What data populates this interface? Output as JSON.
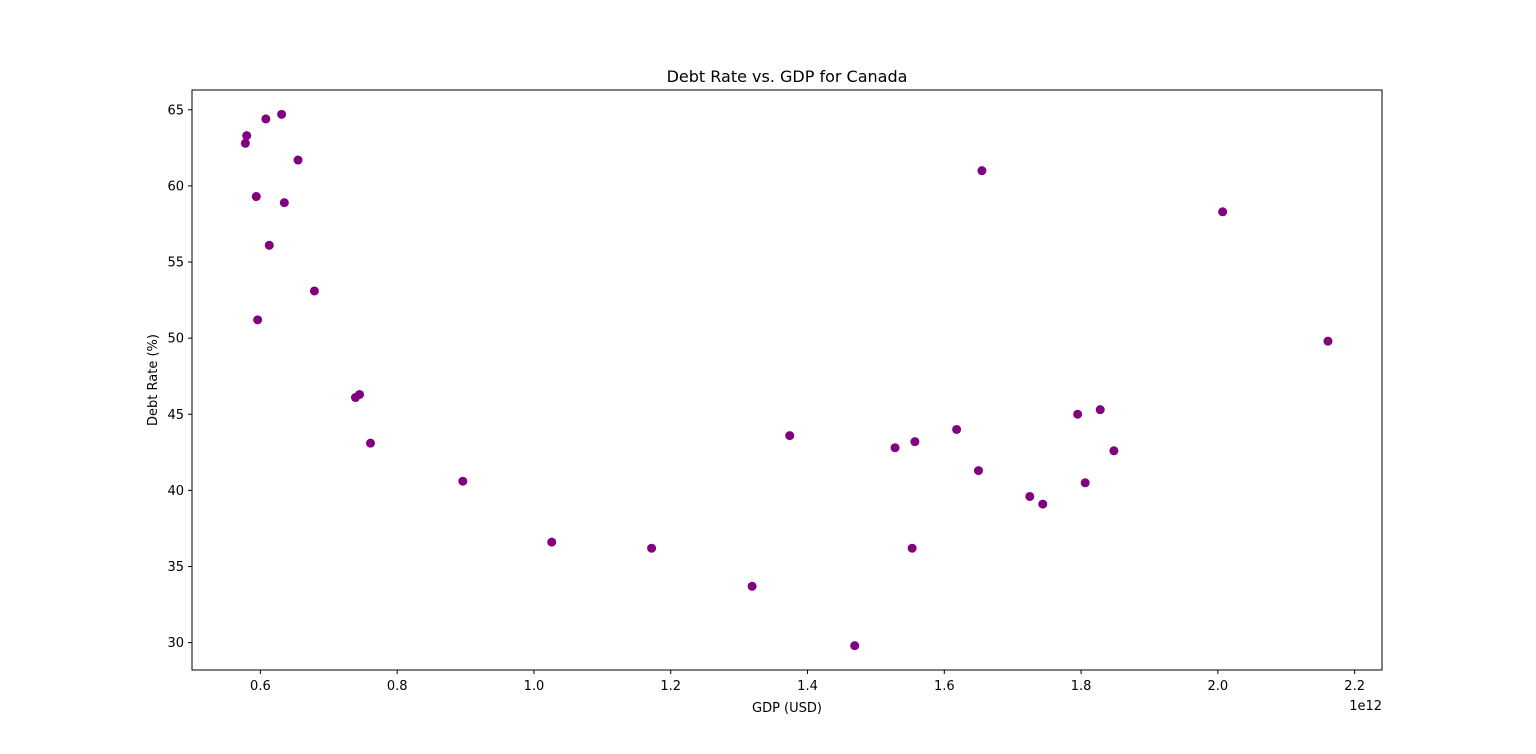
{
  "chart_data": {
    "type": "scatter",
    "title": "Debt Rate vs. GDP for Canada",
    "xlabel": "GDP (USD)",
    "ylabel": "Debt Rate (%)",
    "x_offset_label": "1e12",
    "xlim": [
      0.5,
      2.24
    ],
    "ylim": [
      28.2,
      66.3
    ],
    "x_ticks": [
      0.6,
      0.8,
      1.0,
      1.2,
      1.4,
      1.6,
      1.8,
      2.0,
      2.2
    ],
    "x_tick_labels": [
      "0.6",
      "0.8",
      "1.0",
      "1.2",
      "1.4",
      "1.6",
      "1.8",
      "2.0",
      "2.2"
    ],
    "y_ticks": [
      30,
      35,
      40,
      45,
      50,
      55,
      60,
      65
    ],
    "y_tick_labels": [
      "30",
      "35",
      "40",
      "45",
      "50",
      "55",
      "60",
      "65"
    ],
    "marker_color": "#800080",
    "grid": false,
    "points": [
      {
        "x": 0.58,
        "y": 63.3
      },
      {
        "x": 0.578,
        "y": 62.8
      },
      {
        "x": 0.608,
        "y": 64.4
      },
      {
        "x": 0.631,
        "y": 64.7
      },
      {
        "x": 0.655,
        "y": 61.7
      },
      {
        "x": 0.594,
        "y": 59.3
      },
      {
        "x": 0.635,
        "y": 58.9
      },
      {
        "x": 0.613,
        "y": 56.1
      },
      {
        "x": 0.679,
        "y": 53.1
      },
      {
        "x": 0.596,
        "y": 51.2
      },
      {
        "x": 0.739,
        "y": 46.1
      },
      {
        "x": 0.745,
        "y": 46.3
      },
      {
        "x": 0.761,
        "y": 43.1
      },
      {
        "x": 0.896,
        "y": 40.6
      },
      {
        "x": 1.026,
        "y": 36.6
      },
      {
        "x": 1.172,
        "y": 36.2
      },
      {
        "x": 1.319,
        "y": 33.7
      },
      {
        "x": 1.374,
        "y": 43.6
      },
      {
        "x": 1.469,
        "y": 29.8
      },
      {
        "x": 1.528,
        "y": 42.8
      },
      {
        "x": 1.553,
        "y": 36.2
      },
      {
        "x": 1.557,
        "y": 43.2
      },
      {
        "x": 1.618,
        "y": 44.0
      },
      {
        "x": 1.65,
        "y": 41.3
      },
      {
        "x": 1.655,
        "y": 61.0
      },
      {
        "x": 1.725,
        "y": 39.6
      },
      {
        "x": 1.744,
        "y": 39.1
      },
      {
        "x": 1.795,
        "y": 45.0
      },
      {
        "x": 1.806,
        "y": 40.5
      },
      {
        "x": 1.828,
        "y": 45.3
      },
      {
        "x": 1.848,
        "y": 42.6
      },
      {
        "x": 2.007,
        "y": 58.3
      },
      {
        "x": 2.161,
        "y": 49.8
      }
    ]
  }
}
